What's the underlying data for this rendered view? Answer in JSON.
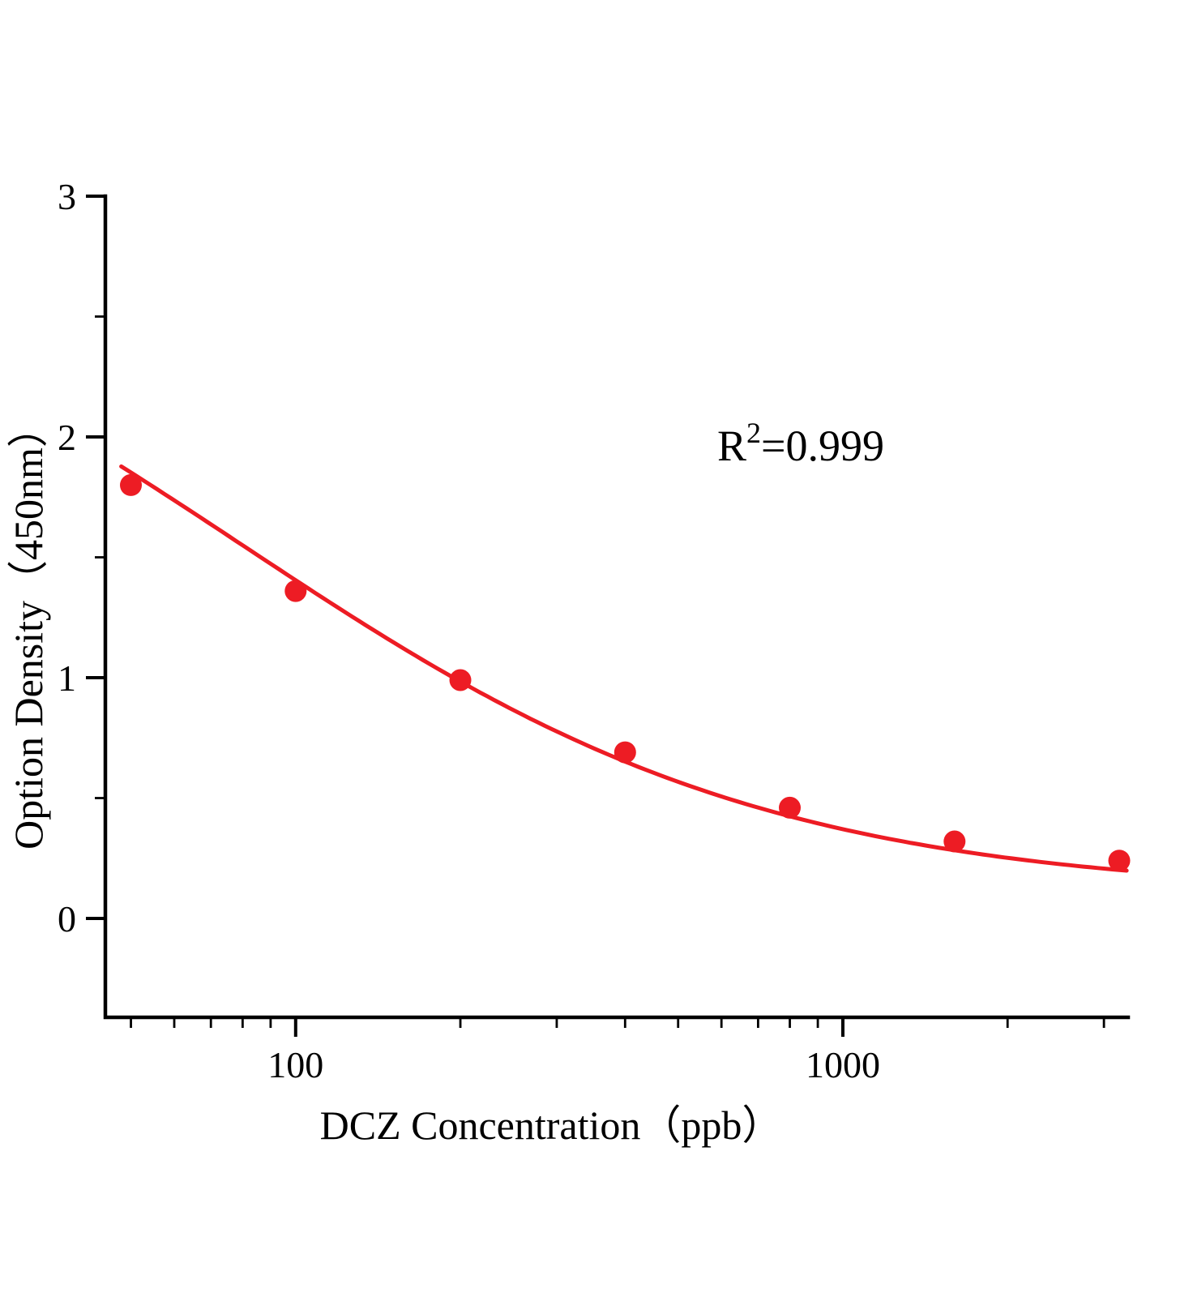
{
  "chart_data": {
    "type": "scatter",
    "xlabel": "DCZ  Concentration（ppb）",
    "ylabel": "Option Density（450nm）",
    "x_scale": "log",
    "x_range": [
      44.9,
      3322
    ],
    "y_range": [
      -0.41,
      3
    ],
    "x_ticks": [
      100,
      1000
    ],
    "x_minor_ticks": [
      50,
      60,
      70,
      80,
      90,
      200,
      300,
      400,
      500,
      600,
      700,
      800,
      900,
      2000,
      3000
    ],
    "y_ticks": [
      0,
      1,
      2,
      3
    ],
    "y_minor_ticks": [
      0.5,
      1.5,
      2.5
    ],
    "grid": false,
    "legend": "none",
    "points": {
      "x": [
        50,
        100,
        200,
        400,
        800,
        1600,
        3200
      ],
      "y": [
        1.8,
        1.36,
        0.99,
        0.69,
        0.46,
        0.32,
        0.24
      ]
    },
    "fit_curve": {
      "model": "4PL",
      "a": 3.0,
      "b": 0.9,
      "c": 80,
      "d": 0.1,
      "x_start": 48,
      "x_end": 3300
    },
    "annotation": {
      "base": "R",
      "sup": "2",
      "rest": "=0.999"
    },
    "point_color": "#ed1c24",
    "curve_color": "#ed1c24",
    "axis_color": "#000000"
  }
}
